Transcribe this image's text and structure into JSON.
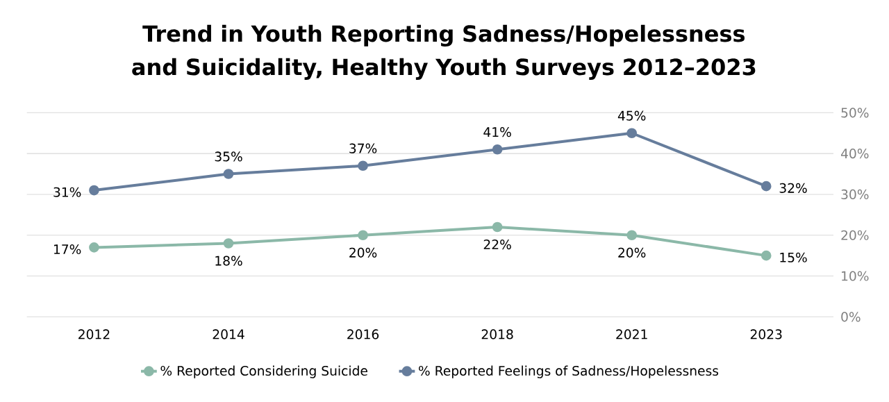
{
  "chart_data": {
    "type": "line",
    "title": "Trend in Youth Reporting Sadness/Hopelessness and Suicidality, Healthy Youth Surveys 2012–2023",
    "categories": [
      "2012",
      "2014",
      "2016",
      "2018",
      "2021",
      "2023"
    ],
    "series": [
      {
        "name": "% Reported Considering Suicide",
        "color": "#8bb8a8",
        "values": [
          17,
          18,
          20,
          22,
          20,
          15
        ],
        "value_labels": [
          "17%",
          "18%",
          "20%",
          "22%",
          "20%",
          "15%"
        ]
      },
      {
        "name": "% Reported Feelings of Sadness/Hopelessness",
        "color": "#667d9c",
        "values": [
          31,
          35,
          37,
          41,
          45,
          32
        ],
        "value_labels": [
          "31%",
          "35%",
          "37%",
          "41%",
          "45%",
          "32%"
        ]
      }
    ],
    "ylim": [
      0,
      50
    ],
    "yticks": [
      {
        "value": 0,
        "label": "0%"
      },
      {
        "value": 10,
        "label": "10%"
      },
      {
        "value": 20,
        "label": "20%"
      },
      {
        "value": 30,
        "label": "30%"
      },
      {
        "value": 40,
        "label": "40%"
      },
      {
        "value": 50,
        "label": "50%"
      }
    ],
    "grid": "y",
    "legend": "bottom",
    "marker": "circle",
    "line_style": "solid"
  }
}
